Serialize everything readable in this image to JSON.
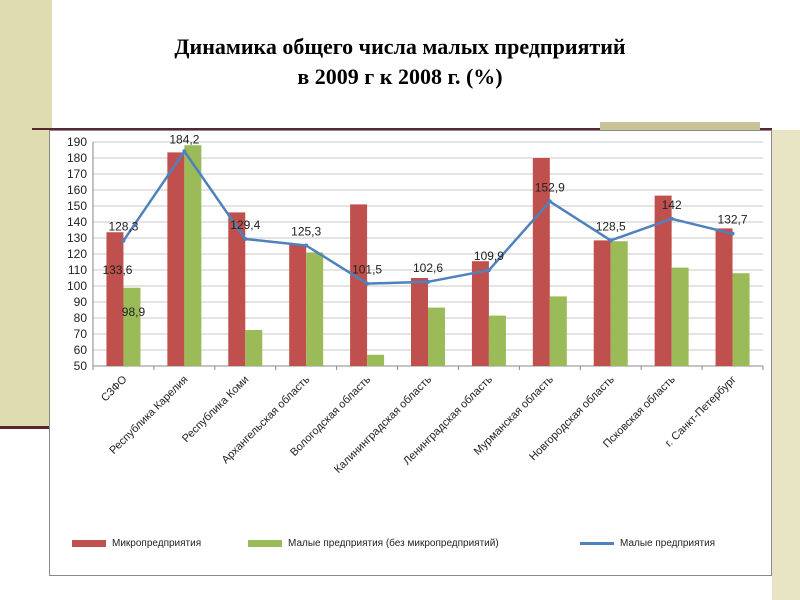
{
  "title": {
    "line1": "Динамика общего числа малых предприятий",
    "line2": "в 2009 г к 2008 г. (%)"
  },
  "colors": {
    "micro": "#c0504d",
    "small": "#9bbb59",
    "line": "#4f81bd",
    "grid": "#c8c8c8",
    "axis": "#8a8a8a",
    "text": "#222222"
  },
  "chart_data": {
    "type": "bar",
    "title": "Динамика общего числа малых предприятий в 2009 г к 2008 г. (%)",
    "categories": [
      "СЗФО",
      "Республика Карелия",
      "Республика Коми",
      "Архангельская область",
      "Вологодская область",
      "Калининградская область",
      "Ленинградская область",
      "Мурманская область",
      "Новгородская область",
      "Псковская область",
      "г. Санкт-Петербург"
    ],
    "ylim": [
      50,
      190
    ],
    "ytick_step": 10,
    "grid": true,
    "legend_position": "bottom",
    "series": [
      {
        "name": "Микропредприятия",
        "kind": "bar",
        "values": [
          133.6,
          183.5,
          146,
          126,
          151,
          105,
          115.5,
          180,
          128.5,
          156.5,
          136
        ]
      },
      {
        "name": "Малые предприятия (без микропредприятий)",
        "kind": "bar",
        "values": [
          98.9,
          188,
          72.5,
          121,
          57,
          86.5,
          81.5,
          93.5,
          128,
          111.5,
          108
        ]
      },
      {
        "name": "Малые предприятия",
        "kind": "line",
        "values": [
          128.3,
          184.2,
          129.4,
          125.3,
          101.5,
          102.6,
          109.9,
          152.9,
          128.5,
          142,
          132.7
        ]
      }
    ],
    "data_labels": [
      {
        "index": 0,
        "text": "128,3",
        "anchor": "line"
      },
      {
        "index": 0,
        "text": "133,6",
        "anchor": "micro_low"
      },
      {
        "index": 0,
        "text": "98,9",
        "anchor": "small_low"
      },
      {
        "index": 1,
        "text": "184,2",
        "anchor": "line"
      },
      {
        "index": 2,
        "text": "129,4",
        "anchor": "line"
      },
      {
        "index": 3,
        "text": "125,3",
        "anchor": "line"
      },
      {
        "index": 4,
        "text": "101,5",
        "anchor": "line"
      },
      {
        "index": 5,
        "text": "102,6",
        "anchor": "line"
      },
      {
        "index": 6,
        "text": "109,9",
        "anchor": "line"
      },
      {
        "index": 7,
        "text": "152,9",
        "anchor": "line"
      },
      {
        "index": 8,
        "text": "128,5",
        "anchor": "line"
      },
      {
        "index": 9,
        "text": "142",
        "anchor": "line"
      },
      {
        "index": 10,
        "text": "132,7",
        "anchor": "line"
      }
    ]
  }
}
